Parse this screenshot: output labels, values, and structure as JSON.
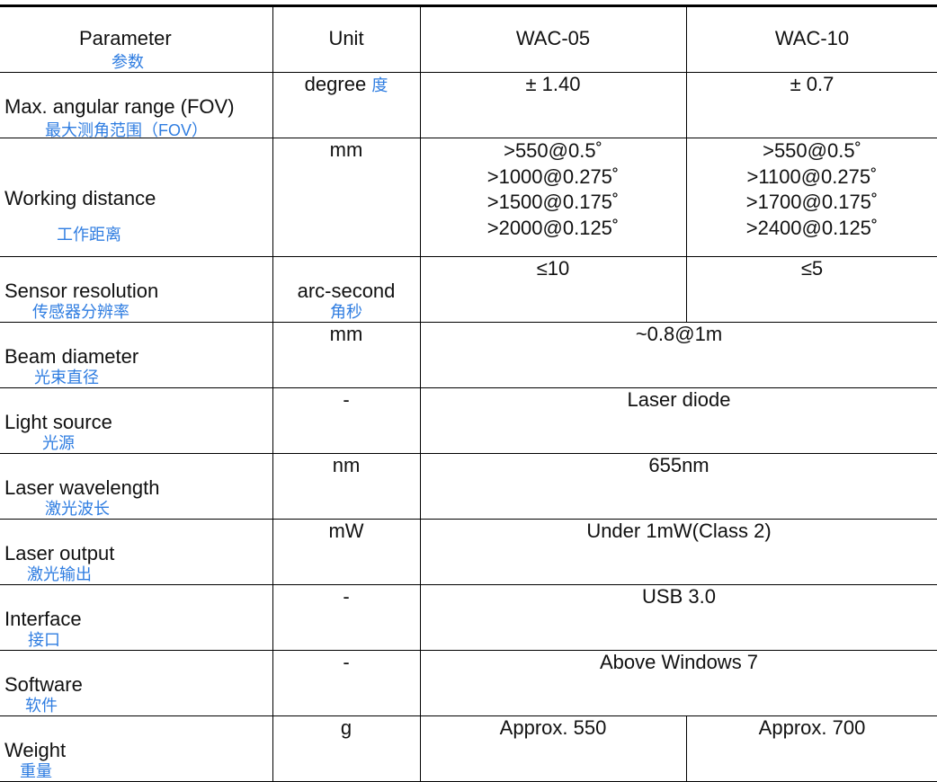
{
  "header": {
    "parameter": "Parameter",
    "parameter_cn": "参数",
    "unit": "Unit",
    "model1": "WAC-05",
    "model2": "WAC-10"
  },
  "rows": [
    {
      "en": "Max. angular range (FOV)",
      "cn": "最大测角范围（FOV）",
      "unit": "degree",
      "unit_cn": "度",
      "v1": "± 1.40",
      "v2": "± 0.7"
    },
    {
      "en": "Working distance",
      "cn": "工作距离",
      "unit": "mm",
      "v1": [
        ">550@0.5˚",
        ">1000@0.275˚",
        ">1500@0.175˚",
        ">2000@0.125˚"
      ],
      "v2": [
        ">550@0.5˚",
        ">1100@0.275˚",
        ">1700@0.175˚",
        ">2400@0.125˚"
      ]
    },
    {
      "en": "Sensor resolution",
      "cn": "传感器分辨率",
      "unit": "arc-second",
      "unit_cn": "角秒",
      "v1": "≤10",
      "v2": "≤5"
    },
    {
      "en": "Beam diameter",
      "cn": "光束直径",
      "unit": "mm",
      "v": "~0.8@1m"
    },
    {
      "en": "Light source",
      "cn": "光源",
      "unit": "-",
      "v": "Laser diode"
    },
    {
      "en": "Laser wavelength",
      "cn": "激光波长",
      "unit": "nm",
      "v": "655nm"
    },
    {
      "en": "Laser output",
      "cn": "激光输出",
      "unit": "mW",
      "v": "Under 1mW(Class 2)"
    },
    {
      "en": "Interface",
      "cn": "接口",
      "unit": "-",
      "v": "USB 3.0"
    },
    {
      "en": "Software",
      "cn": "软件",
      "unit": "-",
      "v": "Above Windows 7"
    },
    {
      "en": "Weight",
      "cn": "重量",
      "unit": "g",
      "v1": "Approx. 550",
      "v2": "Approx. 700"
    }
  ],
  "colors": {
    "chinese_text": "#2f7de1",
    "border": "#000000"
  }
}
